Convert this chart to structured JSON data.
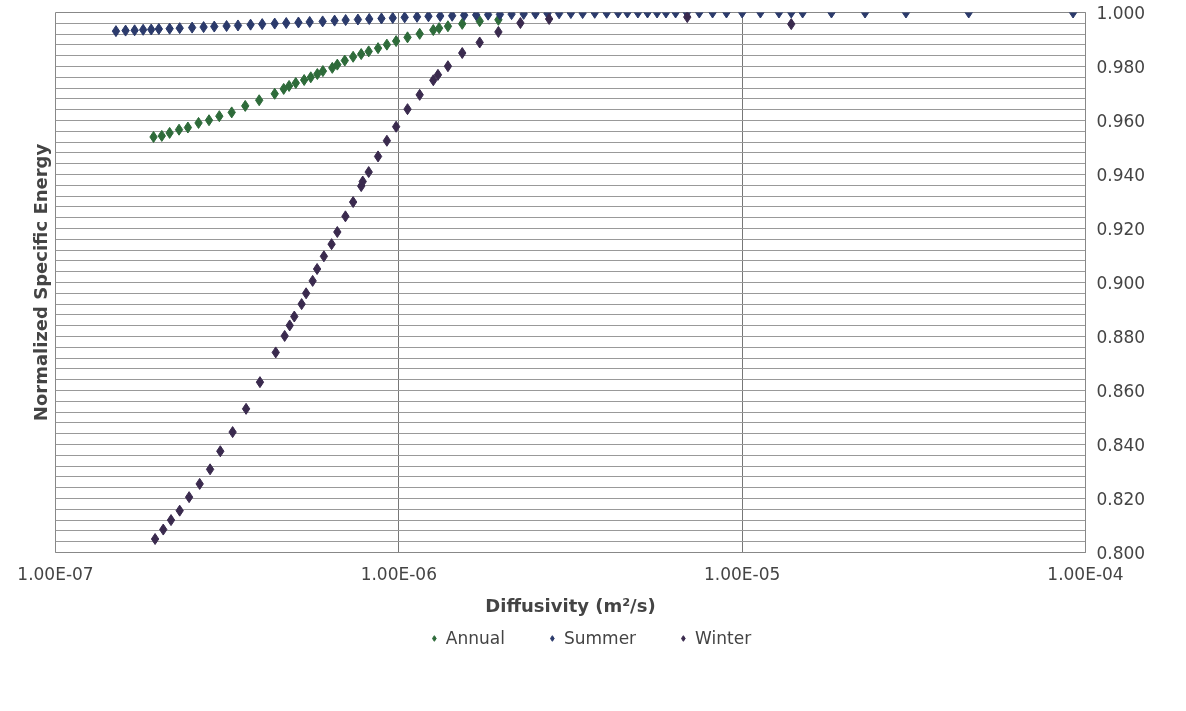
{
  "chart_data": {
    "type": "scatter",
    "xlabel": "Diffusivity (m²/s)",
    "ylabel": "Normalized Specific Energy",
    "log": "x",
    "marker": "diamond",
    "grid": true,
    "legend": "bottom",
    "xlim": [
      1e-07,
      0.0001
    ],
    "ylim": [
      0.8,
      1.0
    ],
    "xticks": [
      {
        "value": 1e-07,
        "label": "1.00E-07"
      },
      {
        "value": 1e-06,
        "label": "1.00E-06"
      },
      {
        "value": 1e-05,
        "label": "1.00E-05"
      },
      {
        "value": 0.0001,
        "label": "1.00E-04"
      }
    ],
    "yticks": [
      {
        "value": 0.8,
        "label": "0.800"
      },
      {
        "value": 0.804,
        "label": null
      },
      {
        "value": 0.808,
        "label": null
      },
      {
        "value": 0.812,
        "label": null
      },
      {
        "value": 0.816,
        "label": null
      },
      {
        "value": 0.82,
        "label": "0.820"
      },
      {
        "value": 0.824,
        "label": null
      },
      {
        "value": 0.828,
        "label": null
      },
      {
        "value": 0.832,
        "label": null
      },
      {
        "value": 0.836,
        "label": null
      },
      {
        "value": 0.84,
        "label": "0.840"
      },
      {
        "value": 0.844,
        "label": null
      },
      {
        "value": 0.848,
        "label": null
      },
      {
        "value": 0.852,
        "label": null
      },
      {
        "value": 0.856,
        "label": null
      },
      {
        "value": 0.86,
        "label": "0.860"
      },
      {
        "value": 0.864,
        "label": null
      },
      {
        "value": 0.868,
        "label": null
      },
      {
        "value": 0.872,
        "label": null
      },
      {
        "value": 0.876,
        "label": null
      },
      {
        "value": 0.88,
        "label": "0.880"
      },
      {
        "value": 0.884,
        "label": null
      },
      {
        "value": 0.888,
        "label": null
      },
      {
        "value": 0.892,
        "label": null
      },
      {
        "value": 0.896,
        "label": null
      },
      {
        "value": 0.9,
        "label": "0.900"
      },
      {
        "value": 0.904,
        "label": null
      },
      {
        "value": 0.908,
        "label": null
      },
      {
        "value": 0.912,
        "label": null
      },
      {
        "value": 0.916,
        "label": null
      },
      {
        "value": 0.92,
        "label": "0.920"
      },
      {
        "value": 0.924,
        "label": null
      },
      {
        "value": 0.928,
        "label": null
      },
      {
        "value": 0.932,
        "label": null
      },
      {
        "value": 0.936,
        "label": null
      },
      {
        "value": 0.94,
        "label": "0.940"
      },
      {
        "value": 0.944,
        "label": null
      },
      {
        "value": 0.948,
        "label": null
      },
      {
        "value": 0.952,
        "label": null
      },
      {
        "value": 0.956,
        "label": null
      },
      {
        "value": 0.96,
        "label": "0.960"
      },
      {
        "value": 0.964,
        "label": null
      },
      {
        "value": 0.968,
        "label": null
      },
      {
        "value": 0.972,
        "label": null
      },
      {
        "value": 0.976,
        "label": null
      },
      {
        "value": 0.98,
        "label": "0.980"
      },
      {
        "value": 0.984,
        "label": null
      },
      {
        "value": 0.988,
        "label": null
      },
      {
        "value": 0.992,
        "label": null
      },
      {
        "value": 0.996,
        "label": null
      },
      {
        "value": 1.0,
        "label": "1.000"
      }
    ],
    "series": [
      {
        "name": "Annual",
        "color": "#2e6b3a",
        "x": [
          1.93e-07,
          2.04e-07,
          2.15e-07,
          2.29e-07,
          2.43e-07,
          2.61e-07,
          2.8e-07,
          3e-07,
          3.26e-07,
          3.57e-07,
          3.92e-07,
          4.35e-07,
          4.62e-07,
          4.79e-07,
          5.01e-07,
          5.3e-07,
          5.54e-07,
          5.79e-07,
          6.01e-07,
          6.4e-07,
          6.62e-07,
          6.96e-07,
          7.36e-07,
          7.77e-07,
          8.17e-07,
          8.7e-07,
          9.23e-07,
          9.82e-07,
          1.06e-06,
          1.15e-06,
          1.26e-06,
          1.31e-06,
          1.39e-06,
          1.53e-06,
          1.72e-06,
          1.95e-06
        ],
        "values": [
          0.9539,
          0.9543,
          0.9554,
          0.9566,
          0.9574,
          0.9591,
          0.9601,
          0.9616,
          0.963,
          0.9654,
          0.9675,
          0.9699,
          0.9717,
          0.9728,
          0.9739,
          0.975,
          0.976,
          0.9772,
          0.9783,
          0.9795,
          0.9807,
          0.9822,
          0.9836,
          0.9846,
          0.9856,
          0.9868,
          0.9881,
          0.9894,
          0.9908,
          0.9921,
          0.9935,
          0.9942,
          0.9949,
          0.9958,
          0.9968,
          0.9973
        ]
      },
      {
        "name": "Summer",
        "color": "#2b3a6b",
        "x": [
          1.5e-07,
          1.6e-07,
          1.7e-07,
          1.8e-07,
          1.9e-07,
          2e-07,
          2.15e-07,
          2.3e-07,
          2.5e-07,
          2.7e-07,
          2.9e-07,
          3.15e-07,
          3.4e-07,
          3.7e-07,
          4e-07,
          4.35e-07,
          4.7e-07,
          5.1e-07,
          5.5e-07,
          6e-07,
          6.5e-07,
          7e-07,
          7.6e-07,
          8.2e-07,
          8.9e-07,
          9.6e-07,
          1.04e-06,
          1.13e-06,
          1.22e-06,
          1.32e-06,
          1.43e-06,
          1.55e-06,
          1.68e-06,
          1.82e-06,
          1.97e-06,
          2.13e-06,
          2.31e-06,
          2.5e-06,
          2.71e-06,
          2.93e-06,
          3.17e-06,
          3.43e-06,
          3.72e-06,
          4.03e-06,
          4.35e-06,
          4.63e-06,
          4.97e-06,
          5.3e-06,
          5.65e-06,
          6e-06,
          6.4e-06,
          6.9e-06,
          7.5e-06,
          8.2e-06,
          9e-06,
          1e-05,
          1.13e-05,
          1.28e-05,
          1.39e-05,
          1.5e-05,
          1.82e-05,
          2.28e-05,
          3e-05,
          4.57e-05,
          9.2e-05
        ],
        "values": [
          0.9931,
          0.9933,
          0.9934,
          0.9936,
          0.9937,
          0.9939,
          0.994,
          0.9942,
          0.9944,
          0.9946,
          0.9948,
          0.995,
          0.9952,
          0.9955,
          0.9957,
          0.9959,
          0.9961,
          0.9963,
          0.9965,
          0.9967,
          0.997,
          0.9972,
          0.9974,
          0.9976,
          0.9978,
          0.998,
          0.9982,
          0.9984,
          0.9986,
          0.9987,
          0.9988,
          0.999,
          0.9991,
          0.9992,
          0.9993,
          0.9994,
          0.9995,
          0.9996,
          0.9997,
          0.9997,
          0.9998,
          0.9998,
          0.9999,
          0.9999,
          1.0,
          1.0,
          1.0,
          1.0,
          1.0,
          1.0,
          1.0,
          1.0,
          1.0,
          1.0,
          1.0,
          1.0,
          1.0,
          1.0,
          1.0,
          1.0,
          1.0,
          1.0,
          1.0,
          1.0,
          1.0
        ]
      },
      {
        "name": "Winter",
        "color": "#3a2a4e",
        "x": [
          1.95e-07,
          2.06e-07,
          2.17e-07,
          2.3e-07,
          2.45e-07,
          2.63e-07,
          2.82e-07,
          3.02e-07,
          3.28e-07,
          3.59e-07,
          3.94e-07,
          4.38e-07,
          4.65e-07,
          4.81e-07,
          4.96e-07,
          5.21e-07,
          5.37e-07,
          5.61e-07,
          5.78e-07,
          6.05e-07,
          6.37e-07,
          6.62e-07,
          6.99e-07,
          7.36e-07,
          7.77e-07,
          7.85e-07,
          8.17e-07,
          8.7e-07,
          9.23e-07,
          9.82e-07,
          1.06e-06,
          1.15e-06,
          1.26e-06,
          1.3e-06,
          1.39e-06,
          1.53e-06,
          1.72e-06,
          1.95e-06,
          2.26e-06,
          2.74e-06,
          6.92e-06,
          1.39e-05
        ],
        "values": [
          0.805,
          0.8085,
          0.812,
          0.8155,
          0.8205,
          0.8254,
          0.8308,
          0.8375,
          0.8446,
          0.8532,
          0.8631,
          0.8741,
          0.8802,
          0.8841,
          0.8874,
          0.892,
          0.896,
          0.9006,
          0.905,
          0.9097,
          0.9142,
          0.9187,
          0.9245,
          0.9298,
          0.9357,
          0.9374,
          0.9409,
          0.9467,
          0.9525,
          0.9577,
          0.9642,
          0.9695,
          0.9749,
          0.9769,
          0.9801,
          0.985,
          0.9889,
          0.9928,
          0.9961,
          0.9976,
          0.9983,
          0.9957
        ]
      }
    ]
  }
}
